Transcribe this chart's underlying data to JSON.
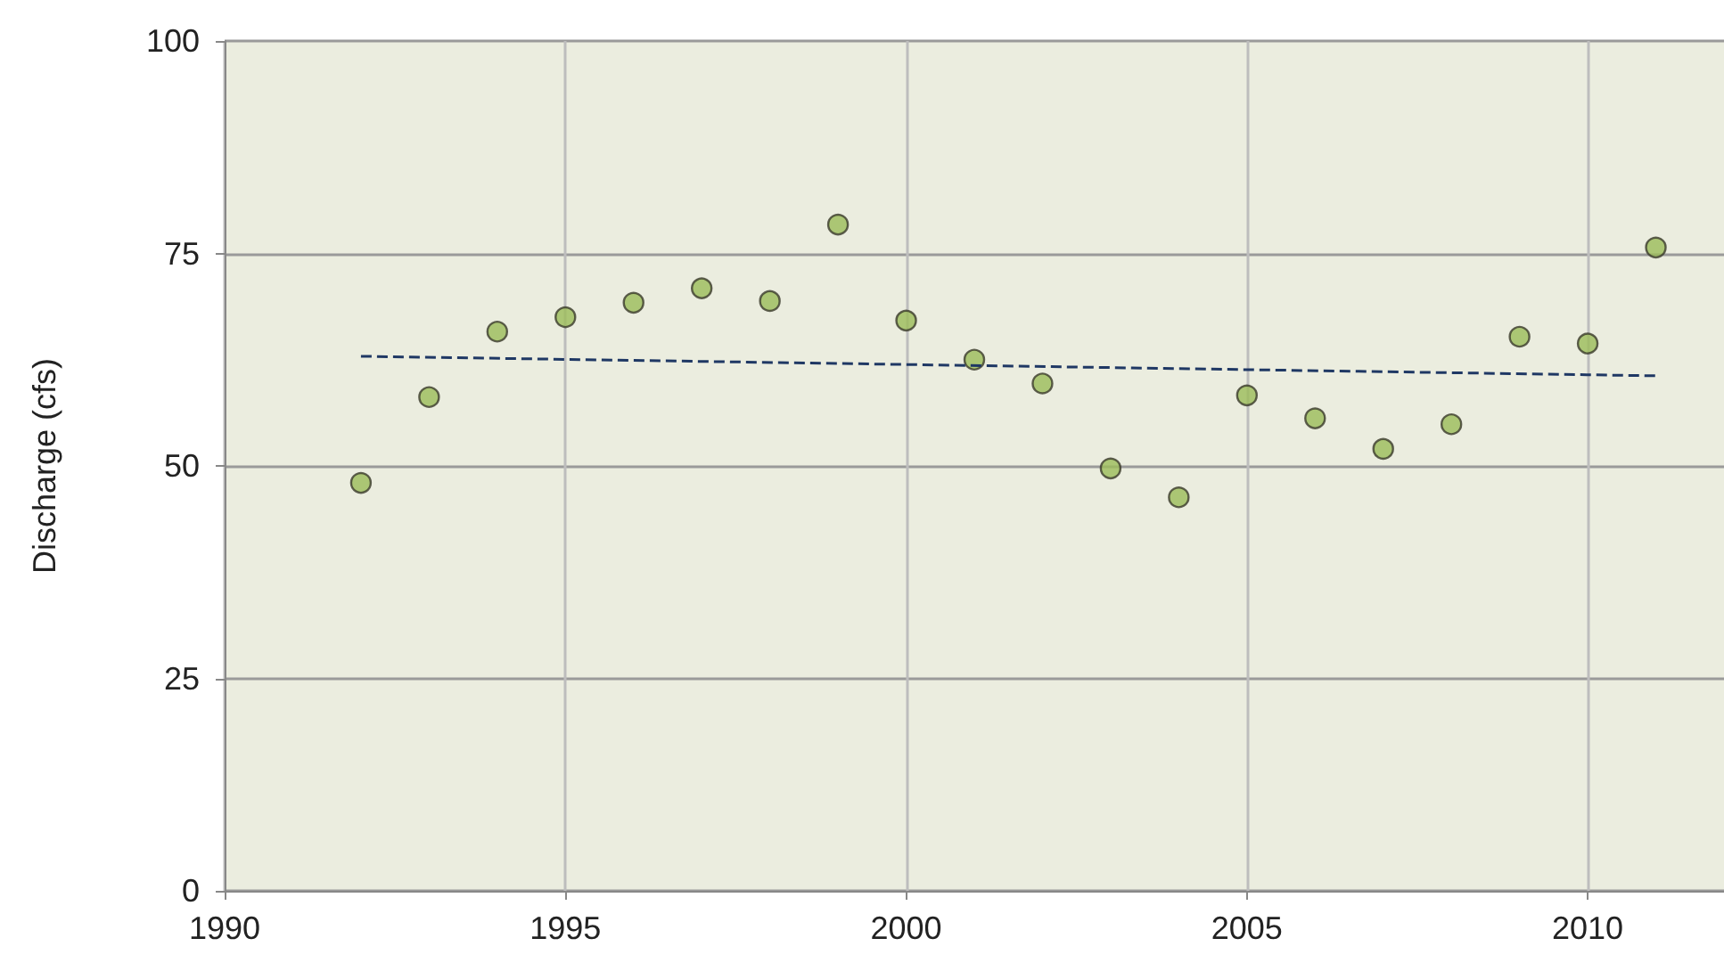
{
  "chart_data": {
    "type": "scatter",
    "ylabel": "Discharge (cfs)",
    "xlim": [
      1990,
      2012
    ],
    "xticks": [
      1990,
      1995,
      2000,
      2005,
      2010
    ],
    "ylim": [
      0,
      100
    ],
    "yticks": [
      0,
      25,
      50,
      75,
      100
    ],
    "grid": true,
    "marker": "circle",
    "series": [
      {
        "color": "#9bbb59",
        "x": [
          1992,
          1993,
          1994,
          1995,
          1996,
          1997,
          1998,
          1999,
          2000,
          2001,
          2002,
          2003,
          2004,
          2005,
          2006,
          2007,
          2008,
          2009,
          2010,
          2011
        ],
        "values": [
          48.0,
          58.1,
          65.8,
          67.5,
          69.2,
          70.9,
          69.4,
          78.4,
          67.1,
          62.5,
          59.7,
          49.7,
          46.3,
          58.3,
          55.6,
          52.0,
          54.9,
          65.2,
          64.4,
          75.7
        ]
      },
      {
        "type": "line",
        "color": "#1f3864",
        "line_style": "dashed",
        "marker": "none",
        "x": [
          1992,
          2011
        ],
        "values": [
          62.9,
          60.6
        ]
      }
    ]
  }
}
